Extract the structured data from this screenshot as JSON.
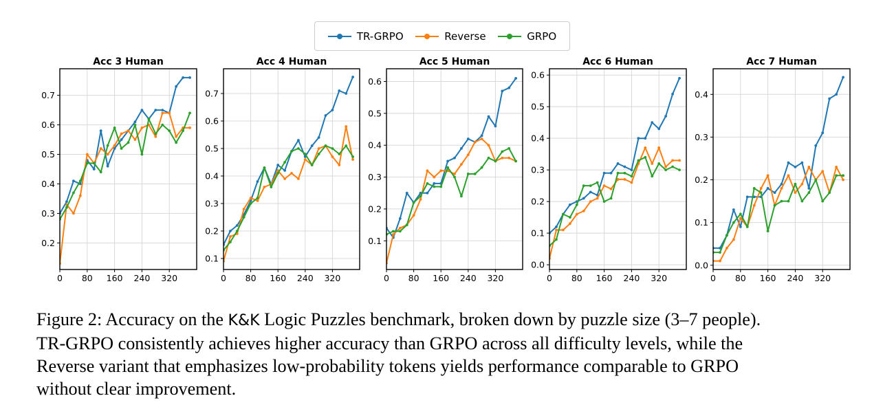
{
  "legend": [
    {
      "name": "TR-GRPO",
      "color": "#1f77b4"
    },
    {
      "name": "Reverse",
      "color": "#ff7f0e"
    },
    {
      "name": "GRPO",
      "color": "#2ca02c"
    }
  ],
  "caption": {
    "line1_a": "Figure 2: Accuracy on the ",
    "line1_kk": "K&K",
    "line1_b": " Logic Puzzles benchmark, broken down by puzzle size (3–7 people).",
    "line2": "TR-GRPO consistently achieves higher accuracy than GRPO across all difficulty levels, while the",
    "line3": "Reverse variant that emphasizes low-probability tokens yields performance comparable to GRPO",
    "line4": "without clear improvement."
  },
  "chart_data": [
    {
      "type": "line",
      "title": "Acc 3 Human",
      "xlabel": "",
      "ylabel": "",
      "xlim": [
        0,
        400
      ],
      "ylim": [
        0.11,
        0.79
      ],
      "xticks": [
        0,
        80,
        160,
        240,
        320
      ],
      "yticks": [
        0.2,
        0.3,
        0.4,
        0.5,
        0.6,
        0.7
      ],
      "grid": true,
      "x": [
        0,
        20,
        40,
        60,
        80,
        100,
        120,
        140,
        160,
        180,
        200,
        220,
        240,
        260,
        280,
        300,
        320,
        340,
        360,
        380
      ],
      "series": [
        {
          "name": "TR-GRPO",
          "values": [
            0.3,
            0.34,
            0.41,
            0.4,
            0.48,
            0.45,
            0.58,
            0.46,
            0.52,
            0.55,
            0.58,
            0.61,
            0.65,
            0.62,
            0.65,
            0.65,
            0.64,
            0.73,
            0.76,
            0.76
          ]
        },
        {
          "name": "Reverse",
          "values": [
            0.13,
            0.33,
            0.3,
            0.36,
            0.5,
            0.47,
            0.52,
            0.5,
            0.53,
            0.57,
            0.58,
            0.55,
            0.59,
            0.6,
            0.56,
            0.64,
            0.64,
            0.56,
            0.59,
            0.59
          ]
        },
        {
          "name": "GRPO",
          "values": [
            0.28,
            0.32,
            0.37,
            0.41,
            0.47,
            0.47,
            0.44,
            0.53,
            0.59,
            0.52,
            0.54,
            0.6,
            0.5,
            0.62,
            0.57,
            0.6,
            0.58,
            0.54,
            0.58,
            0.64
          ]
        }
      ]
    },
    {
      "type": "line",
      "title": "Acc 4 Human",
      "xlabel": "",
      "ylabel": "",
      "xlim": [
        0,
        400
      ],
      "ylim": [
        0.06,
        0.79
      ],
      "xticks": [
        0,
        80,
        160,
        240,
        320
      ],
      "yticks": [
        0.1,
        0.2,
        0.3,
        0.4,
        0.5,
        0.6,
        0.7
      ],
      "grid": true,
      "x": [
        0,
        20,
        40,
        60,
        80,
        100,
        120,
        140,
        160,
        180,
        200,
        220,
        240,
        260,
        280,
        300,
        320,
        340,
        360,
        380
      ],
      "series": [
        {
          "name": "TR-GRPO",
          "values": [
            0.15,
            0.2,
            0.22,
            0.26,
            0.31,
            0.38,
            0.43,
            0.37,
            0.44,
            0.42,
            0.49,
            0.53,
            0.47,
            0.51,
            0.54,
            0.62,
            0.64,
            0.71,
            0.7,
            0.76
          ]
        },
        {
          "name": "Reverse",
          "values": [
            0.09,
            0.18,
            0.19,
            0.28,
            0.32,
            0.31,
            0.36,
            0.37,
            0.42,
            0.39,
            0.41,
            0.39,
            0.46,
            0.44,
            0.5,
            0.51,
            0.47,
            0.44,
            0.58,
            0.46
          ]
        },
        {
          "name": "GRPO",
          "values": [
            0.13,
            0.16,
            0.2,
            0.25,
            0.3,
            0.32,
            0.43,
            0.36,
            0.41,
            0.45,
            0.49,
            0.5,
            0.48,
            0.44,
            0.48,
            0.51,
            0.5,
            0.48,
            0.51,
            0.47
          ]
        }
      ]
    },
    {
      "type": "line",
      "title": "Acc 5 Human",
      "xlabel": "",
      "ylabel": "",
      "xlim": [
        0,
        400
      ],
      "ylim": [
        0.01,
        0.64
      ],
      "xticks": [
        0,
        80,
        160,
        240,
        320
      ],
      "yticks": [
        0.1,
        0.2,
        0.3,
        0.4,
        0.5,
        0.6
      ],
      "grid": true,
      "x": [
        0,
        20,
        40,
        60,
        80,
        100,
        120,
        140,
        160,
        180,
        200,
        220,
        240,
        260,
        280,
        300,
        320,
        340,
        360,
        380
      ],
      "series": [
        {
          "name": "TR-GRPO",
          "values": [
            0.14,
            0.11,
            0.17,
            0.25,
            0.22,
            0.25,
            0.25,
            0.28,
            0.28,
            0.35,
            0.36,
            0.39,
            0.42,
            0.41,
            0.43,
            0.49,
            0.46,
            0.57,
            0.58,
            0.61
          ]
        },
        {
          "name": "Reverse",
          "values": [
            0.03,
            0.12,
            0.14,
            0.15,
            0.18,
            0.23,
            0.32,
            0.3,
            0.32,
            0.32,
            0.31,
            0.34,
            0.37,
            0.41,
            0.42,
            0.4,
            0.35,
            0.36,
            0.36,
            0.35
          ]
        },
        {
          "name": "GRPO",
          "values": [
            0.12,
            0.13,
            0.13,
            0.15,
            0.22,
            0.24,
            0.28,
            0.27,
            0.27,
            0.33,
            0.3,
            0.24,
            0.31,
            0.31,
            0.33,
            0.36,
            0.35,
            0.38,
            0.39,
            0.35
          ]
        }
      ]
    },
    {
      "type": "line",
      "title": "Acc 6 Human",
      "xlabel": "",
      "ylabel": "",
      "xlim": [
        0,
        400
      ],
      "ylim": [
        -0.015,
        0.62
      ],
      "xticks": [
        0,
        80,
        160,
        240,
        320
      ],
      "yticks": [
        0.0,
        0.1,
        0.2,
        0.3,
        0.4,
        0.5,
        0.6
      ],
      "grid": true,
      "x": [
        0,
        20,
        40,
        60,
        80,
        100,
        120,
        140,
        160,
        180,
        200,
        220,
        240,
        260,
        280,
        300,
        320,
        340,
        360,
        380
      ],
      "series": [
        {
          "name": "TR-GRPO",
          "values": [
            0.1,
            0.12,
            0.16,
            0.19,
            0.2,
            0.21,
            0.23,
            0.22,
            0.29,
            0.29,
            0.32,
            0.31,
            0.3,
            0.4,
            0.4,
            0.45,
            0.43,
            0.47,
            0.54,
            0.59
          ]
        },
        {
          "name": "Reverse",
          "values": [
            0.02,
            0.11,
            0.11,
            0.13,
            0.16,
            0.17,
            0.2,
            0.21,
            0.25,
            0.24,
            0.27,
            0.27,
            0.26,
            0.32,
            0.37,
            0.32,
            0.37,
            0.31,
            0.33,
            0.33
          ]
        },
        {
          "name": "GRPO",
          "values": [
            0.06,
            0.08,
            0.16,
            0.15,
            0.19,
            0.25,
            0.25,
            0.26,
            0.2,
            0.21,
            0.29,
            0.29,
            0.28,
            0.33,
            0.34,
            0.28,
            0.32,
            0.3,
            0.31,
            0.3
          ]
        }
      ]
    },
    {
      "type": "line",
      "title": "Acc 7 Human",
      "xlabel": "",
      "ylabel": "",
      "xlim": [
        0,
        400
      ],
      "ylim": [
        -0.01,
        0.46
      ],
      "xticks": [
        0,
        80,
        160,
        240,
        320
      ],
      "yticks": [
        0.0,
        0.1,
        0.2,
        0.3,
        0.4
      ],
      "grid": true,
      "x": [
        0,
        20,
        40,
        60,
        80,
        100,
        120,
        140,
        160,
        180,
        200,
        220,
        240,
        260,
        280,
        300,
        320,
        340,
        360,
        380
      ],
      "series": [
        {
          "name": "TR-GRPO",
          "values": [
            0.04,
            0.04,
            0.07,
            0.13,
            0.09,
            0.16,
            0.16,
            0.16,
            0.18,
            0.17,
            0.19,
            0.24,
            0.23,
            0.24,
            0.18,
            0.28,
            0.31,
            0.39,
            0.4,
            0.44
          ]
        },
        {
          "name": "Reverse",
          "values": [
            0.01,
            0.01,
            0.04,
            0.06,
            0.11,
            0.09,
            0.14,
            0.18,
            0.21,
            0.14,
            0.18,
            0.21,
            0.17,
            0.19,
            0.23,
            0.2,
            0.22,
            0.17,
            0.23,
            0.2
          ]
        },
        {
          "name": "GRPO",
          "values": [
            0.03,
            0.03,
            0.07,
            0.1,
            0.12,
            0.09,
            0.18,
            0.17,
            0.08,
            0.14,
            0.15,
            0.15,
            0.19,
            0.15,
            0.17,
            0.2,
            0.15,
            0.17,
            0.21,
            0.21
          ]
        }
      ]
    }
  ]
}
